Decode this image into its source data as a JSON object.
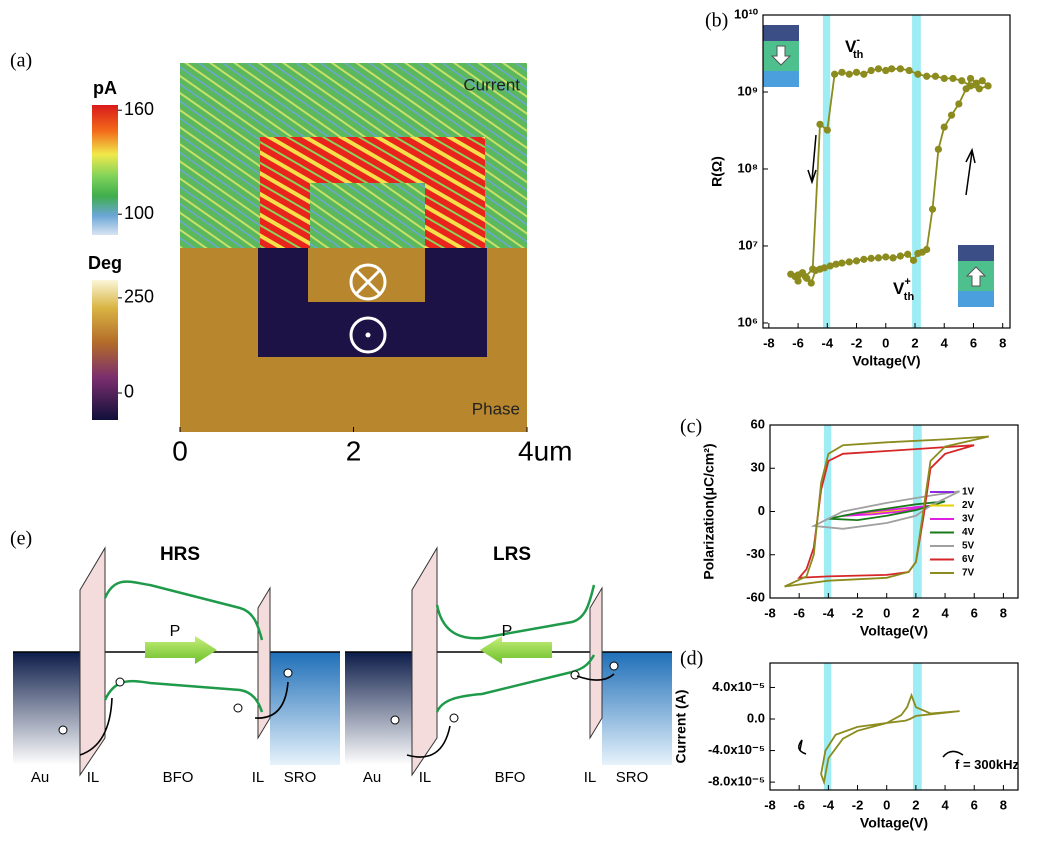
{
  "panel_a": {
    "label": "(a)",
    "colorbars": [
      {
        "unit": "pA",
        "clim": [
          88,
          163
        ],
        "ticks": [
          100,
          160
        ]
      },
      {
        "unit": "Deg",
        "clim": [
          -71,
          297
        ],
        "ticks": [
          0,
          250
        ]
      }
    ],
    "map_labels": [
      "Current",
      "Phase"
    ],
    "xlim": [
      0,
      4
    ],
    "xticks": [
      0,
      2,
      {
        "value": 4,
        "label": "4um"
      }
    ]
  },
  "chart_data": [
    {
      "type": "line",
      "panel_label": "(b)",
      "x_label": "Voltage(V)",
      "y_label": "R(Ω)",
      "log_y": true,
      "xlim": [
        -8.4,
        8.5
      ],
      "xticks": [
        -8,
        -6,
        -4,
        -2,
        0,
        2,
        4,
        6,
        8
      ],
      "ylim": [
        860000,
        10000000000
      ],
      "yticks": [
        {
          "value": 1000000,
          "label": "10⁶"
        },
        {
          "value": 10000000,
          "label": "10⁷"
        },
        {
          "value": 100000000,
          "label": "10⁸"
        },
        {
          "value": 1000000000,
          "label": "10⁹"
        },
        {
          "value": 10000000000,
          "label": "10¹⁰"
        }
      ],
      "shaded_regions": [
        [
          -4.3,
          -3.8
        ],
        [
          1.8,
          2.4
        ]
      ],
      "shade_color": "#86e8f2",
      "series": [
        {
          "color": "#8b8b1e",
          "markers": true,
          "x": [
            -6.5,
            -6.2,
            -6,
            -5.7,
            -5.4,
            -5.1,
            -4.8,
            -4.5,
            -4.2,
            -3.8,
            -3.4,
            -3,
            -2.5,
            -2,
            -1.5,
            -1,
            -0.5,
            0,
            0.5,
            1,
            1.5,
            1.9,
            2.2,
            2.5,
            2.8,
            3.2,
            3.6,
            4,
            4.5,
            5,
            5.5,
            5.8,
            6.2,
            6.6,
            7,
            6.4,
            5.8,
            5.2,
            4.6,
            4,
            3.4,
            2.8,
            2.2,
            1.6,
            1,
            0.4,
            0,
            -0.5,
            -1,
            -1.5,
            -2,
            -2.5,
            -3,
            -3.5,
            -4,
            -4.5,
            -5,
            -5.5,
            -6
          ],
          "values": [
            4300000,
            4000000,
            3500000,
            4500000,
            3800000,
            3300000,
            4800000,
            5000000,
            5200000,
            5500000,
            5800000,
            6000000,
            6200000,
            6400000,
            6700000,
            6900000,
            7000000,
            7200000,
            7000000,
            7400000,
            7800000,
            6500000,
            8000000,
            8300000,
            9000000,
            30000000,
            180000000,
            350000000,
            500000000,
            700000000,
            1100000000,
            1500000000,
            1300000000,
            1400000000,
            1200000000,
            1100000000,
            1200000000,
            1400000000,
            1500000000,
            1500000000,
            1600000000,
            1600000000,
            1700000000,
            1900000000,
            2000000000,
            2000000000,
            1900000000,
            2000000000,
            1900000000,
            1700000000,
            1800000000,
            1700000000,
            1800000000,
            1700000000,
            320000000,
            380000000,
            5000000,
            4000000,
            4200000
          ]
        }
      ],
      "annotations": [
        {
          "text": "V",
          "sub": "th",
          "sup": "-"
        },
        {
          "text": "V",
          "sub": "th",
          "sup": "+"
        }
      ]
    },
    {
      "type": "line",
      "panel_label": "(c)",
      "x_label": "Voltage(V)",
      "y_label": "Polarization(μC/cm²)",
      "legend": "right",
      "xlim": [
        -8,
        9
      ],
      "xticks": [
        -8,
        -6,
        -4,
        -2,
        0,
        2,
        4,
        6,
        8
      ],
      "ylim": [
        -60,
        60
      ],
      "yticks": [
        -60,
        -30,
        0,
        30,
        60
      ],
      "shaded_regions": [
        [
          -4.3,
          -3.8
        ],
        [
          1.8,
          2.4
        ]
      ],
      "shade_color": "#86e8f2",
      "series": [
        {
          "name": "1V",
          "color": "#8a2be2",
          "x": [
            1,
            0,
            -1,
            0,
            1
          ],
          "values": [
            0.5,
            0.2,
            -0.5,
            -0.2,
            0.5
          ]
        },
        {
          "name": "2V",
          "color": "#e6d200",
          "x": [
            2,
            0,
            -2,
            0,
            2
          ],
          "values": [
            2,
            0.5,
            -1.5,
            -0.5,
            2
          ]
        },
        {
          "name": "3V",
          "color": "#e020e0",
          "x": [
            3,
            1,
            -1,
            -3,
            -1,
            1,
            3
          ],
          "values": [
            4,
            2,
            0,
            -3,
            -2,
            0,
            4
          ]
        },
        {
          "name": "4V",
          "color": "#1a7a1a",
          "x": [
            4,
            2,
            0,
            -2,
            -4,
            -2,
            0,
            2,
            4
          ],
          "values": [
            7,
            5,
            2,
            -1,
            -5,
            -6,
            -3,
            1,
            7
          ]
        },
        {
          "name": "5V",
          "color": "#a0a0a0",
          "x": [
            5,
            3,
            0,
            -3,
            -5,
            -3,
            0,
            2,
            3,
            5
          ],
          "values": [
            14,
            11,
            6,
            0,
            -10,
            -12,
            -8,
            -3,
            4,
            14
          ]
        },
        {
          "name": "6V",
          "color": "#d62728",
          "x": [
            6,
            3,
            0,
            -3,
            -4,
            -4.5,
            -5,
            -5.5,
            -6,
            -4,
            0,
            1.5,
            2,
            2.5,
            3,
            4,
            6
          ],
          "values": [
            46,
            44,
            42,
            40,
            35,
            15,
            -25,
            -40,
            -46,
            -45,
            -44,
            -42,
            -35,
            -5,
            30,
            40,
            46
          ]
        },
        {
          "name": "7V",
          "color": "#8b8b1e",
          "x": [
            7,
            4,
            0,
            -3,
            -4,
            -4.5,
            -5,
            -5.5,
            -7,
            -4,
            0,
            1.5,
            2,
            2.5,
            3,
            4,
            7
          ],
          "values": [
            52,
            50,
            48,
            46,
            40,
            20,
            -30,
            -45,
            -52,
            -48,
            -46,
            -42,
            -35,
            0,
            35,
            45,
            52
          ]
        }
      ]
    },
    {
      "type": "line",
      "panel_label": "(d)",
      "x_label": "Voltage(V)",
      "y_label": "Current (A)",
      "xlim": [
        -8,
        9
      ],
      "xticks": [
        -8,
        -6,
        -4,
        -2,
        0,
        2,
        4,
        6,
        8
      ],
      "ylim": [
        -9e-05,
        7.1e-05
      ],
      "yticks": [
        {
          "value": -8e-05,
          "label": "-8.0x10⁻⁵"
        },
        {
          "value": -4e-05,
          "label": "-4.0x10⁻⁵"
        },
        {
          "value": 0,
          "label": "0.0"
        },
        {
          "value": 4e-05,
          "label": "4.0x10⁻⁵"
        }
      ],
      "shaded_regions": [
        [
          -4.3,
          -3.8
        ],
        [
          1.8,
          2.4
        ]
      ],
      "shade_color": "#86e8f2",
      "series": [
        {
          "color": "#8b8b1e",
          "x": [
            5,
            3,
            2,
            1.8,
            1.6,
            1.3,
            0,
            -2,
            -3.5,
            -4.2,
            -4.5,
            -4.3,
            -4,
            -3,
            -2,
            0,
            1,
            1.4,
            1.7,
            2,
            3,
            5
          ],
          "values": [
            1e-05,
            6e-06,
            4e-06,
            2e-06,
            0,
            -2e-06,
            -5e-06,
            -1e-05,
            -2e-05,
            -4e-05,
            -7e-05,
            -8e-05,
            -5e-05,
            -2.5e-05,
            -1.5e-05,
            -5e-06,
            5e-06,
            1.5e-05,
            3e-05,
            1.5e-05,
            7e-06,
            1e-05
          ]
        }
      ],
      "annotations": [
        {
          "text": "f = 300kHz"
        }
      ]
    }
  ],
  "panel_e": {
    "label": "(e)",
    "diagrams": [
      {
        "state": "HRS",
        "arrow": "P",
        "layers": [
          "Au",
          "IL",
          "BFO",
          "IL",
          "SRO"
        ]
      },
      {
        "state": "LRS",
        "arrow": "P",
        "layers": [
          "Au",
          "IL",
          "BFO",
          "IL",
          "SRO"
        ]
      }
    ]
  }
}
